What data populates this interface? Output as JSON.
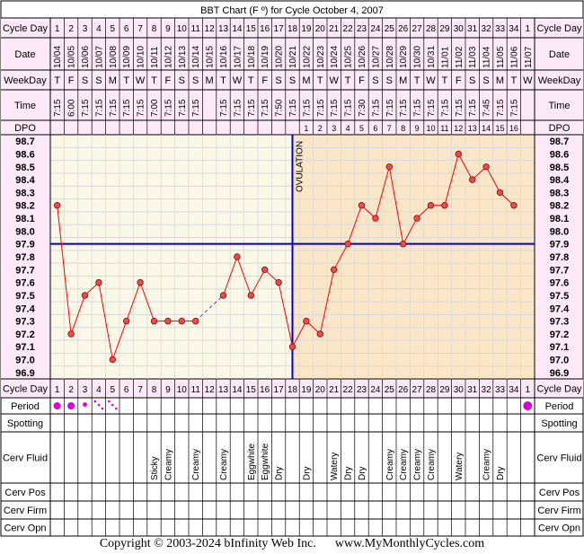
{
  "chart_data": {
    "type": "line",
    "title": "BBT Chart (F º) for Cycle October 4, 2007",
    "row_labels": {
      "cycle_day": "Cycle Day",
      "date": "Date",
      "weekday": "WeekDay",
      "time": "Time",
      "dpo": "DPO",
      "period": "Period",
      "spotting": "Spotting",
      "cerv_fluid": "Cerv Fluid",
      "cerv_pos": "Cerv Pos",
      "cerv_firm": "Cerv Firm",
      "cerv_opn": "Cerv Opn"
    },
    "cycle_days": [
      "1",
      "2",
      "3",
      "4",
      "5",
      "6",
      "7",
      "8",
      "9",
      "10",
      "11",
      "12",
      "13",
      "14",
      "15",
      "16",
      "17",
      "18",
      "19",
      "20",
      "21",
      "22",
      "23",
      "24",
      "25",
      "26",
      "27",
      "28",
      "29",
      "30",
      "31",
      "32",
      "33",
      "34",
      "1"
    ],
    "dates": [
      "10/04",
      "10/05",
      "10/06",
      "10/07",
      "10/08",
      "10/09",
      "10/10",
      "10/11",
      "10/12",
      "10/13",
      "10/14",
      "10/15",
      "10/16",
      "10/17",
      "10/18",
      "10/19",
      "10/20",
      "10/21",
      "10/22",
      "10/23",
      "10/24",
      "10/25",
      "10/26",
      "10/27",
      "10/28",
      "10/29",
      "10/30",
      "10/31",
      "11/01",
      "11/02",
      "11/03",
      "11/04",
      "11/05",
      "11/06",
      "11/07"
    ],
    "weekdays": [
      "T",
      "F",
      "S",
      "S",
      "M",
      "T",
      "W",
      "T",
      "F",
      "S",
      "S",
      "M",
      "T",
      "W",
      "T",
      "F",
      "S",
      "S",
      "M",
      "T",
      "W",
      "T",
      "F",
      "S",
      "S",
      "M",
      "T",
      "W",
      "T",
      "F",
      "S",
      "S",
      "M",
      "T",
      "W"
    ],
    "times": [
      "7:15",
      "6:00",
      "7:15",
      "7:15",
      "7:15",
      "7:15",
      "7:15",
      "7:00",
      "7:15",
      "7:15",
      "7:15",
      "",
      "7:15",
      "7:15",
      "7:15",
      "7:15",
      "7:50",
      "7:15",
      "7:15",
      "7:15",
      "7:15",
      "7:15",
      "7:30",
      "7:15",
      "7:15",
      "7:15",
      "7:15",
      "7:15",
      "7:15",
      "7:15",
      "7:15",
      "7:45",
      "7:15",
      "7:15",
      ""
    ],
    "dpo": [
      "",
      "",
      "",
      "",
      "",
      "",
      "",
      "",
      "",
      "",
      "",
      "",
      "",
      "",
      "",
      "",
      "",
      "",
      "1",
      "2",
      "3",
      "4",
      "5",
      "6",
      "7",
      "8",
      "9",
      "10",
      "11",
      "12",
      "13",
      "14",
      "15",
      "16",
      ""
    ],
    "temps": [
      98.2,
      97.2,
      97.5,
      97.6,
      97.0,
      97.3,
      97.6,
      97.3,
      97.3,
      97.3,
      97.3,
      null,
      97.5,
      97.8,
      97.5,
      97.7,
      97.6,
      97.1,
      97.3,
      97.2,
      97.7,
      97.9,
      98.2,
      98.1,
      98.5,
      97.9,
      98.1,
      98.2,
      98.2,
      98.6,
      98.4,
      98.5,
      98.3,
      98.2,
      null
    ],
    "y_ticks": [
      "98.7",
      "98.6",
      "98.5",
      "98.4",
      "98.3",
      "98.2",
      "98.1",
      "98.0",
      "97.9",
      "97.8",
      "97.7",
      "97.6",
      "97.5",
      "97.4",
      "97.3",
      "97.2",
      "97.1",
      "97.0",
      "96.9"
    ],
    "ylim": [
      96.9,
      98.7
    ],
    "coverline": 97.9,
    "ovulation_day": 18,
    "ovulation_label": "OVULATION",
    "period": [
      "heavy",
      "heavy",
      "medium",
      "light",
      "light",
      "",
      "",
      "",
      "",
      "",
      "",
      "",
      "",
      "",
      "",
      "",
      "",
      "",
      "",
      "",
      "",
      "",
      "",
      "",
      "",
      "",
      "",
      "",
      "",
      "",
      "",
      "",
      "",
      "",
      "heavy"
    ],
    "cerv_fluid": [
      "",
      "",
      "",
      "",
      "",
      "",
      "",
      "Sticky",
      "Creamy",
      "",
      "Creamy",
      "",
      "Creamy",
      "",
      "Eggwhite",
      "Eggwhite",
      "Dry",
      "",
      "Dry",
      "",
      "Watery",
      "Dry",
      "Dry",
      "",
      "Creamy",
      "Creamy",
      "Creamy",
      "Creamy",
      "",
      "Watery",
      "",
      "Creamy",
      "Dry",
      "",
      ""
    ],
    "colors": {
      "line": "#ff0000",
      "marker": "#e05050",
      "coverline": "#0000cc",
      "pre_ov_bg": "#fbf8e8",
      "post_ov_bg": "#fbe6c8",
      "header_bg": "#fde9f8",
      "period_marker": "#dd00dd",
      "border": "#000000"
    }
  },
  "footer": {
    "copyright": "Copyright © 2003-2024 bInfinity Web Inc.",
    "site": "www.MyMonthlyCycles.com"
  }
}
